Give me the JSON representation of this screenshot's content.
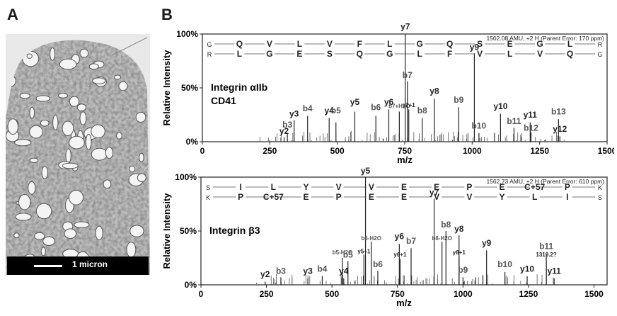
{
  "panels": {
    "A": "A",
    "B": "B"
  },
  "micrograph": {
    "scale_label": "1 micron"
  },
  "chart_data": [
    {
      "type": "bar",
      "title": "Integrin αIIb CD41",
      "title_lines": [
        "Integrin αIIb",
        "CD41"
      ],
      "ylabel": "Relative Intensity",
      "xlabel": "m/z",
      "xlim": [
        0,
        1500
      ],
      "ylim": [
        0,
        100
      ],
      "xticks": [
        "0",
        "250",
        "500",
        "750",
        "1000",
        "1250",
        "1500"
      ],
      "yticks": [
        "0%",
        "50%",
        "100%"
      ],
      "precursor": "1502.08 AMU, +2 H (Parent Error: 170 ppm)",
      "top_sequence": [
        "G",
        "Q",
        "V",
        "L",
        "V",
        "F",
        "L",
        "G",
        "Q",
        "S",
        "E",
        "G",
        "L",
        "R"
      ],
      "bottom_sequence": [
        "R",
        "L",
        "G",
        "E",
        "S",
        "Q",
        "G",
        "L",
        "F",
        "V",
        "L",
        "V",
        "Q",
        "G"
      ],
      "peaks": [
        {
          "label": "b3",
          "mz": 315,
          "intensity": 8,
          "ly": 12
        },
        {
          "label": "y2",
          "mz": 303,
          "intensity": 4,
          "ly": 6
        },
        {
          "label": "y3",
          "mz": 340,
          "intensity": 20,
          "ly": 22
        },
        {
          "label": "b4",
          "mz": 390,
          "intensity": 24,
          "ly": 27
        },
        {
          "label": "y4",
          "mz": 470,
          "intensity": 22,
          "ly": 25
        },
        {
          "label": "b5",
          "mz": 495,
          "intensity": 18,
          "ly": 25
        },
        {
          "label": "y5",
          "mz": 565,
          "intensity": 28,
          "ly": 33
        },
        {
          "label": "b6",
          "mz": 643,
          "intensity": 24,
          "ly": 28
        },
        {
          "label": "y6",
          "mz": 691,
          "intensity": 30,
          "ly": 33
        },
        {
          "label": "b7+H2O",
          "mz": 730,
          "intensity": 28,
          "ly": 30
        },
        {
          "label": "y7",
          "mz": 752,
          "intensity": 100,
          "ly": 103
        },
        {
          "label": "b7",
          "mz": 760,
          "intensity": 56,
          "ly": 58
        },
        {
          "label": "y7+1",
          "mz": 765,
          "intensity": 30,
          "ly": 31
        },
        {
          "label": "b8",
          "mz": 815,
          "intensity": 22,
          "ly": 25
        },
        {
          "label": "y8",
          "mz": 860,
          "intensity": 40,
          "ly": 43
        },
        {
          "label": "b9",
          "mz": 950,
          "intensity": 32,
          "ly": 35
        },
        {
          "label": "y9",
          "mz": 1008,
          "intensity": 82,
          "ly": 84
        },
        {
          "label": "b10",
          "mz": 1025,
          "intensity": 8,
          "ly": 11
        },
        {
          "label": "y10",
          "mz": 1105,
          "intensity": 26,
          "ly": 29
        },
        {
          "label": "b11",
          "mz": 1155,
          "intensity": 13,
          "ly": 15
        },
        {
          "label": "y11",
          "mz": 1215,
          "intensity": 18,
          "ly": 21
        },
        {
          "label": "b12",
          "mz": 1218,
          "intensity": 9,
          "ly": 9
        },
        {
          "label": "b13",
          "mz": 1320,
          "intensity": 21,
          "ly": 24
        },
        {
          "label": "y12",
          "mz": 1325,
          "intensity": 5,
          "ly": 8
        }
      ]
    },
    {
      "type": "bar",
      "title": "Integrin β3",
      "title_lines": [
        "Integrin β3"
      ],
      "ylabel": "Relative Intensity",
      "xlabel": "m/z",
      "xlim": [
        0,
        1550
      ],
      "ylim": [
        0,
        100
      ],
      "xticks": [
        "0",
        "250",
        "500",
        "750",
        "1000",
        "1250",
        "1500"
      ],
      "yticks": [
        "0%",
        "50%",
        "100%"
      ],
      "precursor": "1562.73 AMU, +2 H (Parent Error: 610 ppm)",
      "top_sequence": [
        "S",
        "I",
        "L",
        "Y",
        "V",
        "V",
        "E",
        "E",
        "P",
        "E",
        "C+57",
        "P",
        "K"
      ],
      "bottom_sequence": [
        "K",
        "P",
        "C+57",
        "E",
        "P",
        "E",
        "E",
        "V",
        "V",
        "Y",
        "L",
        "I",
        "S"
      ],
      "peaks": [
        {
          "label": "y2",
          "mz": 245,
          "intensity": 3,
          "ly": 6
        },
        {
          "label": "b3",
          "mz": 305,
          "intensity": 7,
          "ly": 9
        },
        {
          "label": "y3",
          "mz": 408,
          "intensity": 6,
          "ly": 9
        },
        {
          "label": "b4",
          "mz": 463,
          "intensity": 8,
          "ly": 11
        },
        {
          "label": "y4",
          "mz": 545,
          "intensity": 6,
          "ly": 9
        },
        {
          "label": "b5-H2O",
          "mz": 540,
          "intensity": 25,
          "ly": 27
        },
        {
          "label": "b5",
          "mz": 561,
          "intensity": 22,
          "ly": 24
        },
        {
          "label": "y5+1",
          "mz": 622,
          "intensity": 28,
          "ly": 28
        },
        {
          "label": "y5",
          "mz": 628,
          "intensity": 100,
          "ly": 102
        },
        {
          "label": "b6-H2O",
          "mz": 650,
          "intensity": 40,
          "ly": 40
        },
        {
          "label": "b6",
          "mz": 675,
          "intensity": 13,
          "ly": 15
        },
        {
          "label": "y6",
          "mz": 757,
          "intensity": 38,
          "ly": 41
        },
        {
          "label": "y6+1",
          "mz": 760,
          "intensity": 24,
          "ly": 25
        },
        {
          "label": "b7",
          "mz": 802,
          "intensity": 34,
          "ly": 37
        },
        {
          "label": "y7",
          "mz": 890,
          "intensity": 80,
          "ly": 82
        },
        {
          "label": "b8-H2O",
          "mz": 920,
          "intensity": 40,
          "ly": 40
        },
        {
          "label": "b8",
          "mz": 935,
          "intensity": 50,
          "ly": 52
        },
        {
          "label": "y8",
          "mz": 985,
          "intensity": 46,
          "ly": 48
        },
        {
          "label": "y8+1",
          "mz": 985,
          "intensity": 26,
          "ly": 27
        },
        {
          "label": "b9",
          "mz": 1000,
          "intensity": 7,
          "ly": 10
        },
        {
          "label": "y9",
          "mz": 1090,
          "intensity": 32,
          "ly": 35
        },
        {
          "label": "b10",
          "mz": 1160,
          "intensity": 12,
          "ly": 15
        },
        {
          "label": "y10",
          "mz": 1245,
          "intensity": 8,
          "ly": 11
        },
        {
          "label": "b11",
          "mz": 1318,
          "intensity": 28,
          "ly": 32
        },
        {
          "label": "1319.2?",
          "mz": 1318,
          "intensity": 22,
          "ly": 25
        },
        {
          "label": "y11",
          "mz": 1348,
          "intensity": 6,
          "ly": 9
        }
      ]
    }
  ]
}
